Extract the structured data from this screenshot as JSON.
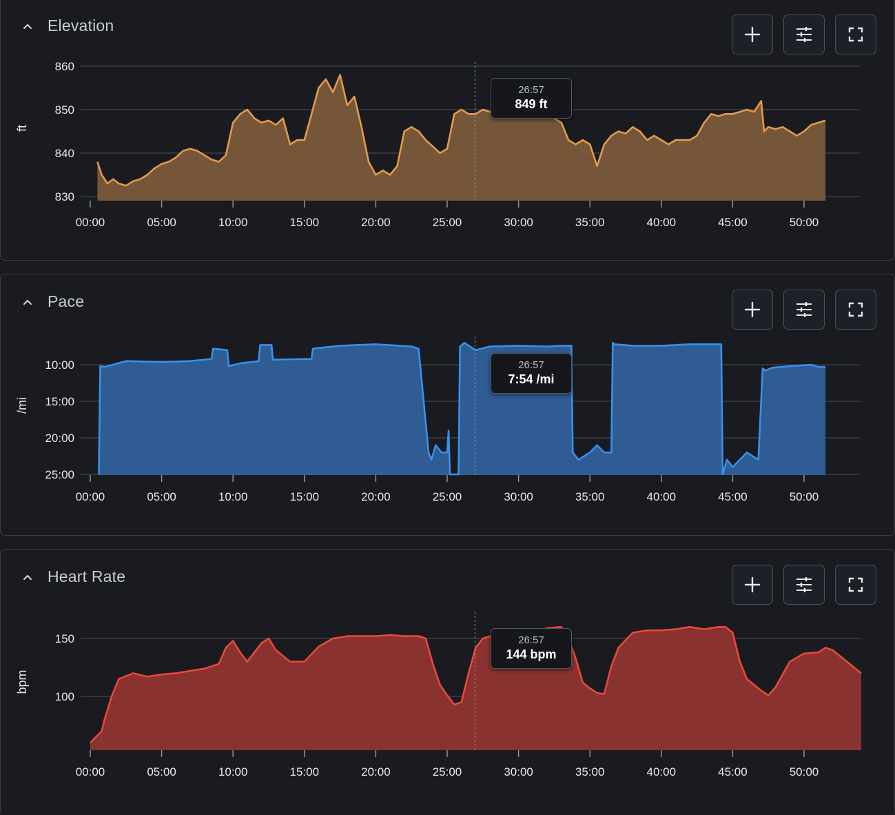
{
  "colors": {
    "background": "#191b21",
    "elevation": "#e39a4c",
    "elevation_fill": "#7a5a3a",
    "pace": "#3b8fea",
    "pace_fill": "#2f609a",
    "heart_rate": "#e8493a",
    "heart_rate_fill": "#8f3430"
  },
  "icons": {
    "collapse": "chevron-up-icon",
    "add": "plus-icon",
    "settings": "sliders-icon",
    "fullscreen": "expand-icon"
  },
  "panels": [
    {
      "id": "elevation",
      "title": "Elevation",
      "unit": "ft",
      "tooltip": {
        "time": "26:57",
        "value": "849 ft"
      },
      "y_ticks": [
        "860",
        "850",
        "840",
        "830"
      ],
      "x_ticks": [
        "00:00",
        "05:00",
        "10:00",
        "15:00",
        "20:00",
        "25:00",
        "30:00",
        "35:00",
        "40:00",
        "45:00",
        "50:00"
      ]
    },
    {
      "id": "pace",
      "title": "Pace",
      "unit": "/mi",
      "tooltip": {
        "time": "26:57",
        "value": "7:54 /mi"
      },
      "y_ticks": [
        "10:00",
        "15:00",
        "20:00",
        "25:00"
      ],
      "x_ticks": [
        "00:00",
        "05:00",
        "10:00",
        "15:00",
        "20:00",
        "25:00",
        "30:00",
        "35:00",
        "40:00",
        "45:00",
        "50:00"
      ]
    },
    {
      "id": "heart-rate",
      "title": "Heart Rate",
      "unit": "bpm",
      "tooltip": {
        "time": "26:57",
        "value": "144 bpm"
      },
      "y_ticks": [
        "150",
        "100"
      ],
      "x_ticks": [
        "00:00",
        "05:00",
        "10:00",
        "15:00",
        "20:00",
        "25:00",
        "30:00",
        "35:00",
        "40:00",
        "45:00",
        "50:00"
      ]
    }
  ],
  "chart_data": [
    {
      "type": "area",
      "title": "Elevation",
      "ylabel": "ft",
      "x_unit": "minutes",
      "xlim": [
        0,
        54
      ],
      "ylim": [
        829,
        861
      ],
      "yticks": [
        830,
        840,
        850,
        860
      ],
      "xticks": [
        0,
        5,
        10,
        15,
        20,
        25,
        30,
        35,
        40,
        45,
        50
      ],
      "cursor": {
        "x": 26.95,
        "label": "26:57",
        "value": "849 ft"
      },
      "x": [
        0.5,
        0.8,
        1.2,
        1.6,
        2.0,
        2.5,
        3.0,
        3.5,
        4.0,
        4.5,
        5.0,
        5.5,
        6.0,
        6.5,
        7.0,
        7.5,
        8.0,
        8.5,
        9.0,
        9.5,
        10.0,
        10.5,
        11.0,
        11.5,
        12.0,
        12.5,
        13.0,
        13.5,
        14.0,
        14.5,
        15.0,
        15.5,
        16.0,
        16.5,
        17.0,
        17.5,
        18.0,
        18.5,
        19.0,
        19.5,
        20.0,
        20.5,
        21.0,
        21.5,
        22.0,
        22.5,
        23.0,
        23.5,
        24.0,
        24.5,
        25.0,
        25.5,
        26.0,
        26.5,
        27.0,
        27.5,
        28.0,
        28.5,
        29.0,
        29.5,
        30.0,
        31.0,
        32.0,
        33.0,
        33.5,
        34.0,
        34.5,
        35.0,
        35.5,
        36.0,
        36.5,
        37.0,
        37.5,
        38.0,
        38.5,
        39.0,
        39.5,
        40.0,
        40.5,
        41.0,
        41.5,
        42.0,
        42.5,
        43.0,
        43.5,
        44.0,
        44.5,
        45.0,
        45.5,
        46.0,
        46.5,
        47.0,
        47.2,
        47.5,
        48.0,
        48.5,
        49.0,
        49.5,
        50.0,
        50.5,
        51.0,
        51.5
      ],
      "y": [
        838,
        835,
        833,
        834,
        833,
        832.5,
        833.5,
        834,
        835,
        836.5,
        837.5,
        838,
        839,
        840.5,
        841,
        840.5,
        839.5,
        838.5,
        838,
        839.5,
        847,
        849,
        850,
        848,
        847,
        847.5,
        846.5,
        848,
        842,
        843,
        843,
        849,
        855,
        857,
        854,
        858,
        851,
        853,
        846,
        838,
        835,
        836,
        835,
        837,
        845,
        846,
        845,
        843,
        841.5,
        840,
        841,
        849,
        850,
        849,
        849,
        850,
        849.5,
        848.5,
        849,
        849.5,
        849,
        849,
        849,
        847,
        843,
        842,
        843,
        842,
        837,
        842,
        844,
        845,
        844.5,
        846,
        845,
        843,
        844,
        843,
        842,
        843,
        843,
        843,
        844,
        847,
        849,
        848.5,
        849,
        849,
        849.5,
        850,
        849.5,
        852,
        845,
        846,
        845.5,
        846,
        845,
        844,
        845,
        846.5,
        847,
        847.5
      ]
    },
    {
      "type": "area",
      "title": "Pace",
      "ylabel": "/mi",
      "x_unit": "minutes",
      "y_unit": "minutes per mile (inverted axis)",
      "xlim": [
        0,
        54
      ],
      "ylim": [
        25,
        6.6
      ],
      "yticks": [
        10,
        15,
        20,
        25
      ],
      "xticks": [
        0,
        5,
        10,
        15,
        20,
        25,
        30,
        35,
        40,
        45,
        50
      ],
      "cursor": {
        "x": 26.95,
        "label": "26:57",
        "value": "7:54 /mi"
      },
      "x": [
        0.6,
        0.7,
        1.0,
        2.5,
        5.0,
        7.0,
        8.5,
        8.6,
        9.6,
        9.7,
        10.5,
        11.8,
        11.9,
        12.7,
        12.8,
        15.5,
        15.6,
        17.5,
        20.0,
        22.5,
        23.0,
        23.5,
        23.7,
        23.9,
        24.2,
        24.6,
        25.0,
        25.1,
        25.2,
        25.8,
        25.9,
        26.2,
        27.0,
        28.0,
        30.0,
        32.0,
        33.0,
        33.7,
        33.8,
        34.2,
        35.0,
        35.5,
        36.0,
        36.5,
        36.6,
        36.7,
        38.0,
        40.0,
        42.0,
        43.5,
        44.2,
        44.3,
        44.6,
        45.0,
        46.0,
        46.8,
        47.1,
        47.3,
        47.8,
        49.0,
        50.5,
        51.0,
        51.5
      ],
      "y": [
        25,
        10.2,
        10.3,
        9.5,
        9.6,
        9.5,
        9.2,
        7.8,
        8.0,
        10.2,
        9.8,
        9.5,
        7.3,
        7.3,
        9.3,
        9.2,
        7.8,
        7.4,
        7.2,
        7.5,
        7.8,
        18,
        22,
        23,
        21,
        22,
        22,
        19,
        25,
        25,
        7.5,
        7.0,
        8.0,
        7.5,
        7.4,
        7.5,
        7.4,
        7.4,
        22,
        23,
        22,
        21,
        22,
        22,
        7.0,
        7.2,
        7.4,
        7.4,
        7.2,
        7.2,
        7.2,
        25,
        23,
        24,
        22,
        23,
        10.5,
        10.8,
        10.4,
        10.2,
        10.0,
        10.3,
        10.3
      ]
    },
    {
      "type": "area",
      "title": "Heart Rate",
      "ylabel": "bpm",
      "x_unit": "minutes",
      "xlim": [
        0,
        54
      ],
      "ylim": [
        53,
        168
      ],
      "yticks": [
        100,
        150
      ],
      "xticks": [
        0,
        5,
        10,
        15,
        20,
        25,
        30,
        35,
        40,
        45,
        50
      ],
      "cursor": {
        "x": 26.95,
        "label": "26:57",
        "value": "144 bpm"
      },
      "x": [
        0,
        0.8,
        1.0,
        1.5,
        2.0,
        3.0,
        4.0,
        5.0,
        6.0,
        7.0,
        8.0,
        8.5,
        9.0,
        9.5,
        10.0,
        10.5,
        11.0,
        12.0,
        12.5,
        13.0,
        14.0,
        15.0,
        16.0,
        17.0,
        18.0,
        19.0,
        20.0,
        21.0,
        22.0,
        23.0,
        23.5,
        24.0,
        24.5,
        25.0,
        25.5,
        26.0,
        26.5,
        27.0,
        27.5,
        28.0,
        29.0,
        30.0,
        31.0,
        32.0,
        33.0,
        33.5,
        34.0,
        34.5,
        35.0,
        35.5,
        36.0,
        36.5,
        37.0,
        38.0,
        39.0,
        40.0,
        41.0,
        42.0,
        43.0,
        44.0,
        44.5,
        45.0,
        45.5,
        46.0,
        47.0,
        47.5,
        48.0,
        49.0,
        50.0,
        51.0,
        51.5,
        52.0,
        53.0,
        54.0
      ],
      "y": [
        60,
        70,
        80,
        100,
        115,
        120,
        117,
        119,
        120,
        122,
        124,
        126,
        128,
        142,
        148,
        138,
        130,
        146,
        150,
        140,
        130,
        130,
        143,
        150,
        152,
        152,
        152,
        153,
        152,
        152,
        150,
        128,
        110,
        101,
        93,
        95,
        120,
        142,
        150,
        152,
        152,
        152,
        155,
        159,
        160,
        150,
        133,
        112,
        107,
        103,
        102,
        126,
        142,
        155,
        157,
        157,
        158,
        160,
        158,
        160,
        160,
        155,
        130,
        115,
        105,
        101,
        108,
        130,
        137,
        138,
        142,
        140,
        130,
        120
      ]
    }
  ]
}
